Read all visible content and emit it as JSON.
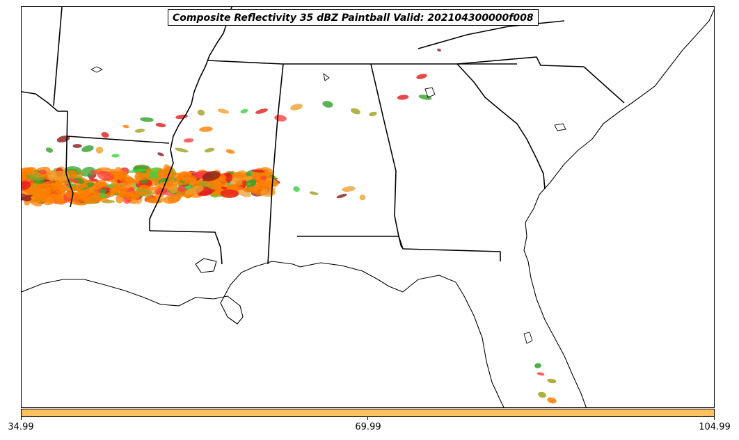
{
  "title": "Composite Reflectivity 35 dBZ Paintball Valid: 202104300000f008",
  "colorbar": {
    "color": "#ffc060",
    "ticks": [
      "34.99",
      "69.99",
      "104.99"
    ]
  },
  "member_colors": [
    "#e31a1c",
    "#ff7f00",
    "#33a02c",
    "#8b1a1a",
    "#a0a020",
    "#3fd03f",
    "#ff4040",
    "#f0a030"
  ]
}
